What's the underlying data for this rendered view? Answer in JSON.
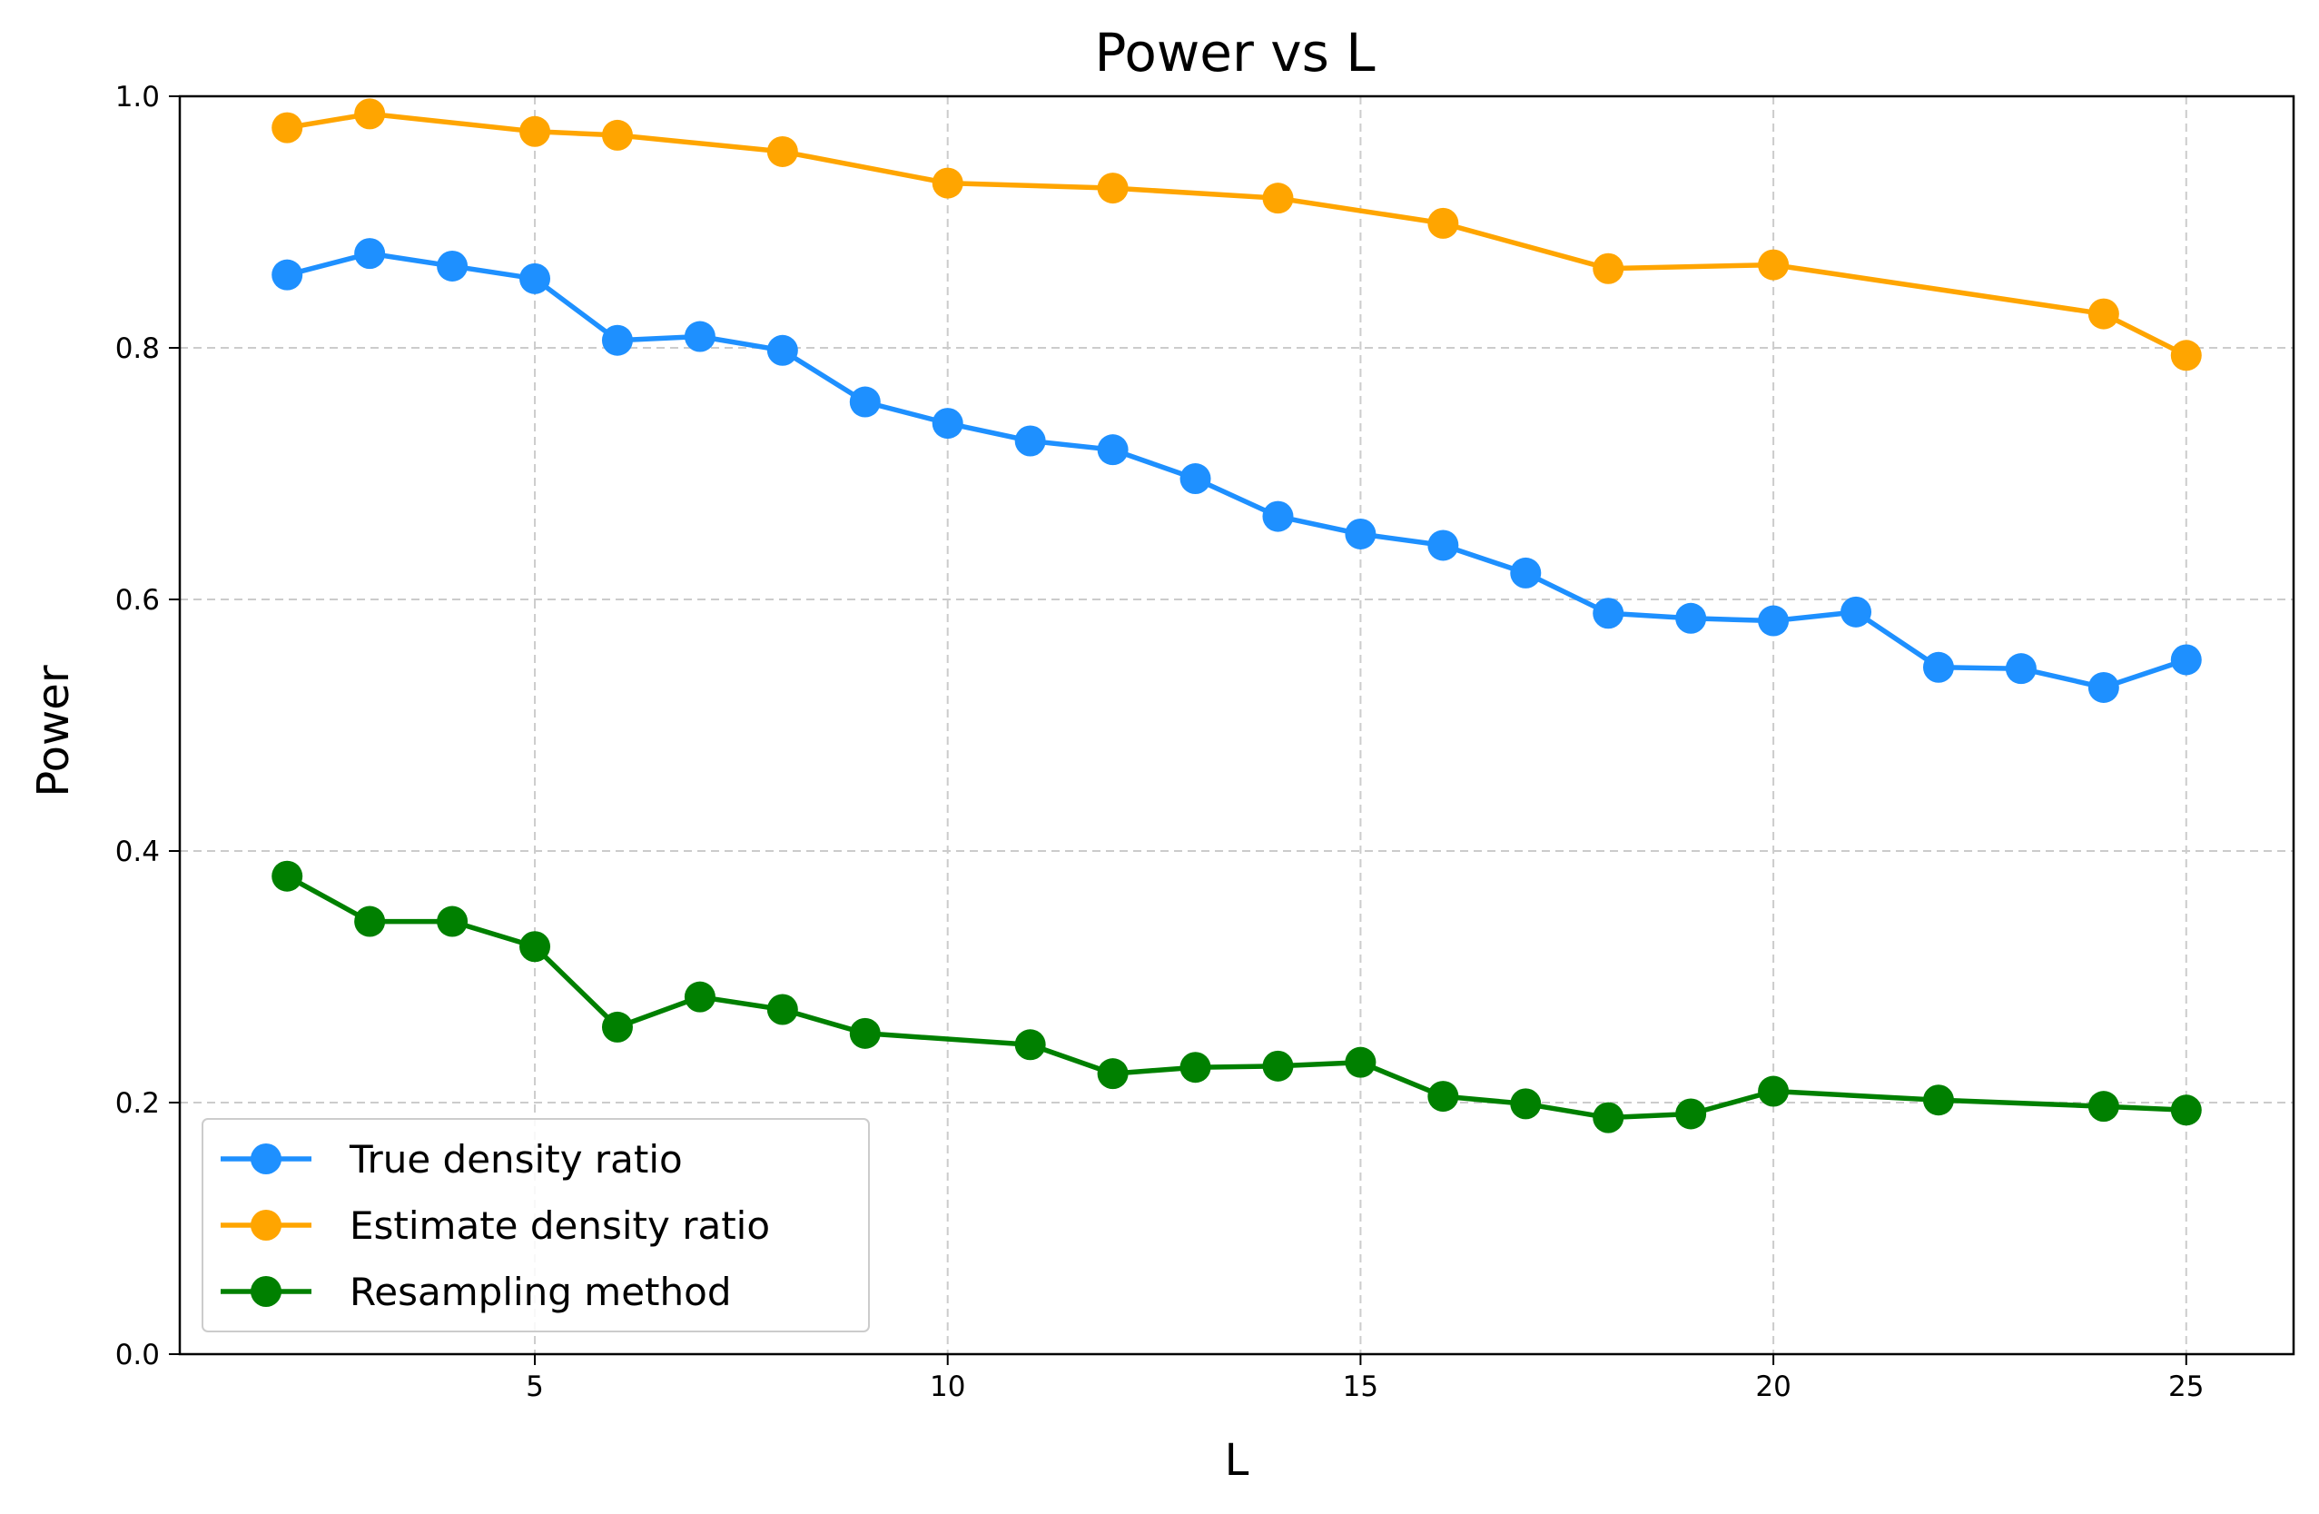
{
  "chart_data": {
    "type": "line",
    "title": "Power vs L",
    "xlabel": "L",
    "ylabel": "Power",
    "xlim": [
      0.7,
      26.3
    ],
    "ylim": [
      0.0,
      1.0
    ],
    "xticks": [
      5,
      10,
      15,
      20,
      25
    ],
    "yticks": [
      0.0,
      0.2,
      0.4,
      0.6,
      0.8,
      1.0
    ],
    "grid": true,
    "legend_position": "lower-left",
    "series": [
      {
        "name": "True density ratio",
        "color": "#1e90ff",
        "x": [
          2,
          3,
          4,
          5,
          6,
          7,
          8,
          9,
          10,
          11,
          12,
          13,
          14,
          15,
          16,
          17,
          18,
          19,
          20,
          21,
          22,
          23,
          24,
          25
        ],
        "values": [
          0.858,
          0.875,
          0.865,
          0.855,
          0.806,
          0.809,
          0.798,
          0.757,
          0.74,
          0.726,
          0.719,
          0.696,
          0.666,
          0.652,
          0.643,
          0.621,
          0.589,
          0.585,
          0.583,
          0.59,
          0.546,
          0.545,
          0.53,
          0.552
        ]
      },
      {
        "name": "Estimate density ratio",
        "color": "#ffa500",
        "x": [
          2,
          3,
          5,
          6,
          8,
          10,
          12,
          14,
          16,
          18,
          20,
          24,
          25
        ],
        "values": [
          0.975,
          0.986,
          0.972,
          0.969,
          0.956,
          0.931,
          0.927,
          0.919,
          0.899,
          0.863,
          0.866,
          0.827,
          0.794
        ]
      },
      {
        "name": "Resampling method",
        "color": "#008000",
        "x": [
          2,
          3,
          4,
          5,
          6,
          7,
          8,
          9,
          11,
          12,
          13,
          14,
          15,
          16,
          17,
          18,
          19,
          20,
          22,
          24,
          25
        ],
        "values": [
          0.38,
          0.344,
          0.344,
          0.324,
          0.26,
          0.284,
          0.274,
          0.255,
          0.246,
          0.223,
          0.228,
          0.229,
          0.232,
          0.205,
          0.199,
          0.188,
          0.191,
          0.209,
          0.202,
          0.197,
          0.194
        ]
      }
    ]
  }
}
